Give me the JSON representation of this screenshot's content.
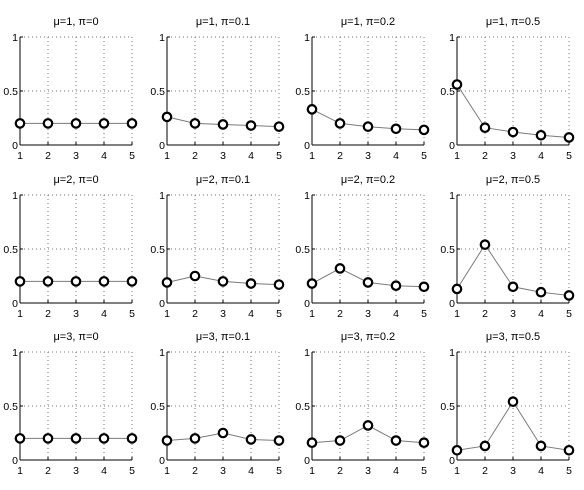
{
  "chart_data": [
    {
      "type": "line",
      "title": "μ=1, π=0",
      "x": [
        1,
        2,
        3,
        4,
        5
      ],
      "values": [
        0.2,
        0.2,
        0.2,
        0.2,
        0.2
      ],
      "ylim": [
        0,
        1
      ],
      "yticks": [
        "0",
        "0.5",
        "1"
      ],
      "xticks": [
        "1",
        "2",
        "3",
        "4",
        "5"
      ],
      "grid": true,
      "series_color": "#7a7a7a"
    },
    {
      "type": "line",
      "title": "μ=1, π=0.1",
      "x": [
        1,
        2,
        3,
        4,
        5
      ],
      "values": [
        0.26,
        0.2,
        0.19,
        0.18,
        0.17
      ],
      "ylim": [
        0,
        1
      ],
      "yticks": [
        "0",
        "0.5",
        "1"
      ],
      "xticks": [
        "1",
        "2",
        "3",
        "4",
        "5"
      ],
      "grid": true,
      "series_color": "#7a7a7a"
    },
    {
      "type": "line",
      "title": "μ=1, π=0.2",
      "x": [
        1,
        2,
        3,
        4,
        5
      ],
      "values": [
        0.33,
        0.2,
        0.17,
        0.15,
        0.14
      ],
      "ylim": [
        0,
        1
      ],
      "yticks": [
        "0",
        "0.5",
        "1"
      ],
      "xticks": [
        "1",
        "2",
        "3",
        "4",
        "5"
      ],
      "grid": true,
      "series_color": "#7a7a7a"
    },
    {
      "type": "line",
      "title": "μ=1, π=0.5",
      "x": [
        1,
        2,
        3,
        4,
        5
      ],
      "values": [
        0.56,
        0.16,
        0.12,
        0.09,
        0.07
      ],
      "ylim": [
        0,
        1
      ],
      "yticks": [
        "0",
        "0.5",
        "1"
      ],
      "xticks": [
        "1",
        "2",
        "3",
        "4",
        "5"
      ],
      "grid": true,
      "series_color": "#7a7a7a"
    },
    {
      "type": "line",
      "title": "μ=2, π=0",
      "x": [
        1,
        2,
        3,
        4,
        5
      ],
      "values": [
        0.2,
        0.2,
        0.2,
        0.2,
        0.2
      ],
      "ylim": [
        0,
        1
      ],
      "yticks": [
        "0",
        "0.5",
        "1"
      ],
      "xticks": [
        "1",
        "2",
        "3",
        "4",
        "5"
      ],
      "grid": true,
      "series_color": "#7a7a7a"
    },
    {
      "type": "line",
      "title": "μ=2, π=0.1",
      "x": [
        1,
        2,
        3,
        4,
        5
      ],
      "values": [
        0.19,
        0.25,
        0.2,
        0.18,
        0.17
      ],
      "ylim": [
        0,
        1
      ],
      "yticks": [
        "0",
        "0.5",
        "1"
      ],
      "xticks": [
        "1",
        "2",
        "3",
        "4",
        "5"
      ],
      "grid": true,
      "series_color": "#7a7a7a"
    },
    {
      "type": "line",
      "title": "μ=2, π=0.2",
      "x": [
        1,
        2,
        3,
        4,
        5
      ],
      "values": [
        0.18,
        0.32,
        0.19,
        0.16,
        0.15
      ],
      "ylim": [
        0,
        1
      ],
      "yticks": [
        "0",
        "0.5",
        "1"
      ],
      "xticks": [
        "1",
        "2",
        "3",
        "4",
        "5"
      ],
      "grid": true,
      "series_color": "#7a7a7a"
    },
    {
      "type": "line",
      "title": "μ=2, π=0.5",
      "x": [
        1,
        2,
        3,
        4,
        5
      ],
      "values": [
        0.13,
        0.54,
        0.15,
        0.1,
        0.07
      ],
      "ylim": [
        0,
        1
      ],
      "yticks": [
        "0",
        "0.5",
        "1"
      ],
      "xticks": [
        "1",
        "2",
        "3",
        "4",
        "5"
      ],
      "grid": true,
      "series_color": "#7a7a7a"
    },
    {
      "type": "line",
      "title": "μ=3, π=0",
      "x": [
        1,
        2,
        3,
        4,
        5
      ],
      "values": [
        0.2,
        0.2,
        0.2,
        0.2,
        0.2
      ],
      "ylim": [
        0,
        1
      ],
      "yticks": [
        "0",
        "0.5",
        "1"
      ],
      "xticks": [
        "1",
        "2",
        "3",
        "4",
        "5"
      ],
      "grid": true,
      "series_color": "#7a7a7a"
    },
    {
      "type": "line",
      "title": "μ=3, π=0.1",
      "x": [
        1,
        2,
        3,
        4,
        5
      ],
      "values": [
        0.18,
        0.2,
        0.25,
        0.19,
        0.18
      ],
      "ylim": [
        0,
        1
      ],
      "yticks": [
        "0",
        "0.5",
        "1"
      ],
      "xticks": [
        "1",
        "2",
        "3",
        "4",
        "5"
      ],
      "grid": true,
      "series_color": "#7a7a7a"
    },
    {
      "type": "line",
      "title": "μ=3, π=0.2",
      "x": [
        1,
        2,
        3,
        4,
        5
      ],
      "values": [
        0.16,
        0.18,
        0.32,
        0.18,
        0.16
      ],
      "ylim": [
        0,
        1
      ],
      "yticks": [
        "0",
        "0.5",
        "1"
      ],
      "xticks": [
        "1",
        "2",
        "3",
        "4",
        "5"
      ],
      "grid": true,
      "series_color": "#7a7a7a"
    },
    {
      "type": "line",
      "title": "μ=3, π=0.5",
      "x": [
        1,
        2,
        3,
        4,
        5
      ],
      "values": [
        0.09,
        0.13,
        0.54,
        0.13,
        0.09
      ],
      "ylim": [
        0,
        1
      ],
      "yticks": [
        "0",
        "0.5",
        "1"
      ],
      "xticks": [
        "1",
        "2",
        "3",
        "4",
        "5"
      ],
      "grid": true,
      "series_color": "#7a7a7a"
    }
  ]
}
